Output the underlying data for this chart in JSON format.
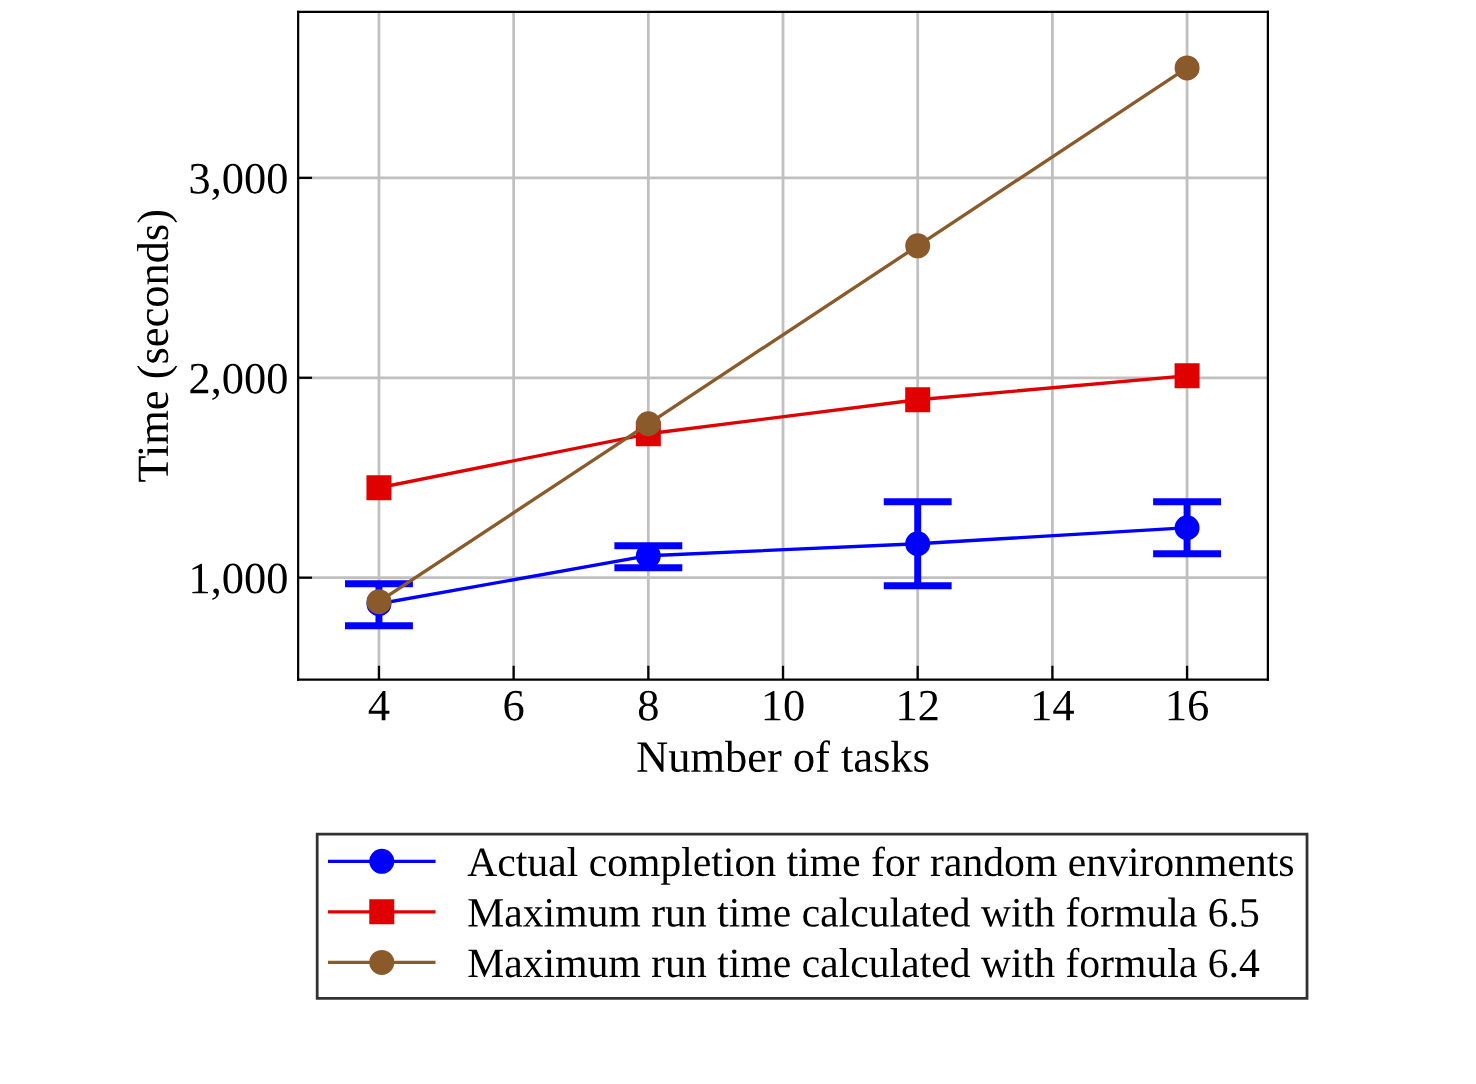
{
  "chart_data": {
    "type": "line",
    "xlabel": "Number of tasks",
    "ylabel": "Time (seconds)",
    "x": [
      4,
      8,
      12,
      16
    ],
    "series": [
      {
        "name": "Actual completion time for random environments",
        "color": "#0000ff",
        "marker": "circle",
        "values": [
          870,
          1110,
          1170,
          1250
        ],
        "errors": [
          [
            760,
            970
          ],
          [
            1050,
            1160
          ],
          [
            960,
            1380
          ],
          [
            1120,
            1380
          ]
        ]
      },
      {
        "name": "Maximum run time calculated with formula 6.5",
        "color": "#e00000",
        "marker": "square",
        "values": [
          1450,
          1720,
          1890,
          2010
        ]
      },
      {
        "name": "Maximum run time calculated with formula 6.4",
        "color": "#8b5a2b",
        "marker": "circle",
        "values": [
          880,
          1770,
          2660,
          3550
        ]
      }
    ],
    "xlim": [
      2.8,
      17.2
    ],
    "xticks": [
      4,
      6,
      8,
      10,
      12,
      14,
      16
    ],
    "ylim": [
      490,
      3830
    ],
    "yticks": [
      {
        "value": 1000,
        "label": "1,000"
      },
      {
        "value": 2000,
        "label": "2,000"
      },
      {
        "value": 3000,
        "label": "3,000"
      }
    ],
    "grid": true,
    "legend": "bottom"
  }
}
